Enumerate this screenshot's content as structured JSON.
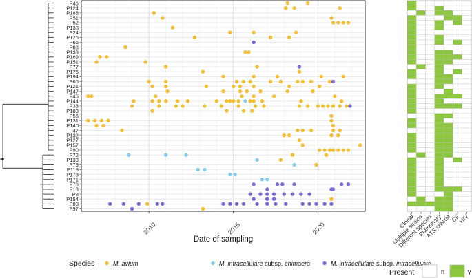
{
  "chart_data": [
    {
      "type": "scatter",
      "xlabel": "Date of sampling",
      "xlim": [
        2006.0,
        2022.8
      ],
      "x_ticks": [
        2010,
        2015,
        2020
      ],
      "x_tick_labels": [
        "2010",
        "2015",
        "2020"
      ],
      "grid": true,
      "patients": [
        "P46",
        "P124",
        "P188",
        "P51",
        "P62",
        "P130",
        "P24",
        "P125",
        "P66",
        "P88",
        "P133",
        "P169",
        "P151",
        "P77",
        "P176",
        "P194",
        "P65",
        "P121",
        "P147",
        "P45",
        "P144",
        "P33",
        "P183",
        "P56",
        "P131",
        "P140",
        "P47",
        "P132",
        "P127",
        "P157",
        "P90",
        "P72",
        "P138",
        "P79",
        "P119",
        "P173",
        "P171",
        "P76",
        "P18",
        "P8",
        "P154",
        "P80",
        "P97"
      ],
      "series": [
        {
          "name": "M. avium",
          "color": "#F2BE34",
          "points": [
            [
              "P46",
              2018.2
            ],
            [
              "P46",
              2019.4
            ],
            [
              "P124",
              2018.1
            ],
            [
              "P124",
              2018.6
            ],
            [
              "P124",
              2021.3
            ],
            [
              "P188",
              2010.3
            ],
            [
              "P51",
              2010.8
            ],
            [
              "P51",
              2020.8
            ],
            [
              "P62",
              2020.9
            ],
            [
              "P62",
              2021.2
            ],
            [
              "P62",
              2021.5
            ],
            [
              "P62",
              2021.8
            ],
            [
              "P130",
              2011.4
            ],
            [
              "P24",
              2014.8
            ],
            [
              "P24",
              2016.2
            ],
            [
              "P24",
              2018.7
            ],
            [
              "P125",
              2012.7
            ],
            [
              "P125",
              2017.2
            ],
            [
              "P125",
              2018.3
            ],
            [
              "P88",
              2008.6
            ],
            [
              "P133",
              2015.7
            ],
            [
              "P133",
              2015.9
            ],
            [
              "P169",
              2007.1
            ],
            [
              "P169",
              2007.5
            ],
            [
              "P151",
              2006.9
            ],
            [
              "P151",
              2009.8
            ],
            [
              "P77",
              2011.0
            ],
            [
              "P77",
              2016.4
            ],
            [
              "P176",
              2013.2
            ],
            [
              "P176",
              2018.9
            ],
            [
              "P194",
              2014.4
            ],
            [
              "P194",
              2016.2
            ],
            [
              "P194",
              2017.6
            ],
            [
              "P194",
              2020.2
            ],
            [
              "P194",
              2021.5
            ],
            [
              "P65",
              2010.0
            ],
            [
              "P65",
              2011.0
            ],
            [
              "P65",
              2015.2
            ],
            [
              "P65",
              2015.6
            ],
            [
              "P65",
              2016.0
            ],
            [
              "P65",
              2017.2
            ],
            [
              "P65",
              2017.8
            ],
            [
              "P65",
              2018.8
            ],
            [
              "P65",
              2019.1
            ],
            [
              "P65",
              2019.6
            ],
            [
              "P65",
              2020.7
            ],
            [
              "P121",
              2010.2
            ],
            [
              "P121",
              2011.0
            ],
            [
              "P121",
              2013.4
            ],
            [
              "P121",
              2015.0
            ],
            [
              "P121",
              2015.4
            ],
            [
              "P121",
              2016.2
            ],
            [
              "P121",
              2018.3
            ],
            [
              "P121",
              2020.1
            ],
            [
              "P147",
              2011.1
            ],
            [
              "P147",
              2014.4
            ],
            [
              "P147",
              2015.4
            ],
            [
              "P147",
              2015.8
            ],
            [
              "P147",
              2016.6
            ],
            [
              "P147",
              2018.2
            ],
            [
              "P147",
              2019.7
            ],
            [
              "P45",
              2006.4
            ],
            [
              "P45",
              2006.6
            ],
            [
              "P45",
              2010.4
            ],
            [
              "P45",
              2015.5
            ],
            [
              "P45",
              2016.2
            ],
            [
              "P45",
              2017.4
            ],
            [
              "P45",
              2021.0
            ],
            [
              "P144",
              2009.1
            ],
            [
              "P144",
              2010.2
            ],
            [
              "P144",
              2010.6
            ],
            [
              "P144",
              2011.0
            ],
            [
              "P144",
              2011.7
            ],
            [
              "P144",
              2012.3
            ],
            [
              "P144",
              2014.0
            ],
            [
              "P144",
              2014.6
            ],
            [
              "P144",
              2014.8
            ],
            [
              "P144",
              2015.0
            ],
            [
              "P144",
              2015.3
            ],
            [
              "P144",
              2016.0
            ],
            [
              "P144",
              2016.2
            ],
            [
              "P144",
              2016.7
            ],
            [
              "P144",
              2019.0
            ],
            [
              "P144",
              2021.4
            ],
            [
              "P33",
              2009.0
            ],
            [
              "P33",
              2010.6
            ],
            [
              "P33",
              2011.6
            ],
            [
              "P33",
              2012.0
            ],
            [
              "P33",
              2013.3
            ],
            [
              "P33",
              2014.3
            ],
            [
              "P33",
              2015.3
            ],
            [
              "P33",
              2016.3
            ],
            [
              "P33",
              2016.8
            ],
            [
              "P33",
              2018.9
            ],
            [
              "P33",
              2019.4
            ],
            [
              "P33",
              2020.0
            ],
            [
              "P33",
              2020.3
            ],
            [
              "P33",
              2020.6
            ],
            [
              "P33",
              2020.9
            ],
            [
              "P33",
              2021.3
            ],
            [
              "P33",
              2021.7
            ],
            [
              "P183",
              2010.2
            ],
            [
              "P183",
              2014.6
            ],
            [
              "P183",
              2015.6
            ],
            [
              "P183",
              2016.1
            ],
            [
              "P56",
              2020.8
            ],
            [
              "P131",
              2006.4
            ],
            [
              "P131",
              2006.8
            ],
            [
              "P131",
              2007.2
            ],
            [
              "P131",
              2007.6
            ],
            [
              "P131",
              2020.8
            ],
            [
              "P140",
              2006.9
            ],
            [
              "P140",
              2007.3
            ],
            [
              "P140",
              2020.9
            ],
            [
              "P47",
              2008.4
            ],
            [
              "P47",
              2018.8
            ],
            [
              "P47",
              2019.1
            ],
            [
              "P47",
              2019.6
            ],
            [
              "P47",
              2020.9
            ],
            [
              "P47",
              2021.3
            ],
            [
              "P132",
              2018.0
            ],
            [
              "P132",
              2018.3
            ],
            [
              "P132",
              2020.8
            ],
            [
              "P132",
              2021.2
            ],
            [
              "P127",
              2018.9
            ],
            [
              "P157",
              2019.1
            ],
            [
              "P157",
              2022.5
            ],
            [
              "P90",
              2020.1
            ],
            [
              "P90",
              2020.4
            ],
            [
              "P90",
              2020.7
            ],
            [
              "P90",
              2020.9
            ],
            [
              "P90",
              2021.2
            ],
            [
              "P90",
              2021.5
            ],
            [
              "P90",
              2021.8
            ],
            [
              "P72",
              2018.5
            ],
            [
              "P72",
              2020.5
            ],
            [
              "P138",
              2017.8
            ],
            [
              "P79",
              2019.9
            ],
            [
              "P154",
              2020.8
            ],
            [
              "P80",
              2009.9
            ],
            [
              "P97",
              2013.2
            ]
          ]
        },
        {
          "name": "M. intracellulare subsp. chimaera",
          "color": "#89CDED",
          "points": [
            [
              "P144",
              2015.7
            ],
            [
              "P72",
              2008.8
            ],
            [
              "P72",
              2011.0
            ],
            [
              "P72",
              2012.2
            ],
            [
              "P138",
              2016.4
            ],
            [
              "P79",
              2018.6
            ],
            [
              "P119",
              2012.9
            ],
            [
              "P119",
              2013.3
            ],
            [
              "P173",
              2014.8
            ],
            [
              "P173",
              2015.1
            ],
            [
              "P171",
              2016.7
            ],
            [
              "P171",
              2017.0
            ]
          ]
        },
        {
          "name": "M. intracellulare subsp. intracellulare",
          "color": "#7B6AD6",
          "points": [
            [
              "P66",
              2016.2
            ],
            [
              "P77",
              2018.9
            ],
            [
              "P65",
              2020.9
            ],
            [
              "P33",
              2021.9
            ],
            [
              "P76",
              2016.2
            ],
            [
              "P76",
              2017.6
            ],
            [
              "P76",
              2017.9
            ],
            [
              "P76",
              2018.6
            ],
            [
              "P76",
              2021.4
            ],
            [
              "P76",
              2021.8
            ],
            [
              "P18",
              2017.0
            ],
            [
              "P18",
              2020.8
            ],
            [
              "P18",
              2020.9
            ],
            [
              "P8",
              2016.0
            ],
            [
              "P8",
              2016.6
            ],
            [
              "P8",
              2017.0
            ],
            [
              "P8",
              2017.4
            ],
            [
              "P8",
              2018.0
            ],
            [
              "P8",
              2018.5
            ],
            [
              "P8",
              2019.0
            ],
            [
              "P8",
              2019.5
            ],
            [
              "P154",
              2016.2
            ],
            [
              "P154",
              2017.0
            ],
            [
              "P154",
              2017.4
            ],
            [
              "P80",
              2007.7
            ],
            [
              "P80",
              2008.5
            ],
            [
              "P80",
              2009.4
            ],
            [
              "P80",
              2010.5
            ],
            [
              "P80",
              2010.8
            ],
            [
              "P80",
              2014.4
            ],
            [
              "P80",
              2014.8
            ],
            [
              "P80",
              2015.2
            ],
            [
              "P80",
              2015.6
            ],
            [
              "P80",
              2016.4
            ],
            [
              "P80",
              2017.0
            ],
            [
              "P80",
              2017.5
            ],
            [
              "P80",
              2018.1
            ],
            [
              "P80",
              2019.1
            ],
            [
              "P80",
              2019.5
            ],
            [
              "P80",
              2019.9
            ],
            [
              "P80",
              2020.4
            ],
            [
              "P80",
              2020.8
            ],
            [
              "P97",
              2009.0
            ]
          ]
        }
      ]
    },
    {
      "type": "heatmap",
      "columns": [
        "Clonal",
        "Multiple strains",
        "Different species",
        "Pulmonary",
        "ATS criteria",
        "CF",
        "HIV"
      ],
      "rows": [
        "P46",
        "P124",
        "P188",
        "P51",
        "P62",
        "P130",
        "P24",
        "P125",
        "P66",
        "P88",
        "P133",
        "P169",
        "P151",
        "P77",
        "P176",
        "P194",
        "P65",
        "P121",
        "P147",
        "P45",
        "P144",
        "P33",
        "P183",
        "P56",
        "P131",
        "P140",
        "P47",
        "P132",
        "P127",
        "P157",
        "P90",
        "P72",
        "P138",
        "P79",
        "P119",
        "P173",
        "P171",
        "P76",
        "P18",
        "P8",
        "P154",
        "P80",
        "P97"
      ],
      "values": [
        "1000000",
        "1001000",
        "0101100",
        "1000110",
        "1001010",
        "1001000",
        "1000000",
        "1001000",
        "1001010",
        "1000000",
        "1001100",
        "1001110",
        "1001100",
        "0101000",
        "1001010",
        "1001100",
        "0001100",
        "1001000",
        "1000100",
        "1001110",
        "1001000",
        "1001110",
        "1000000",
        "0001100",
        "1001000",
        "1001100",
        "0001100",
        "1001100",
        "1001100",
        "1001100",
        "1001100",
        "0101100",
        "1001010",
        "1001000",
        "1001000",
        "1001000",
        "1001000",
        "1001000",
        "1001110",
        "1000100",
        "0101100",
        "1111100",
        "0001100"
      ],
      "legend_title": "Present",
      "legend_labels": [
        "n",
        "y"
      ],
      "colors": {
        "n": "#FFFFFF",
        "y": "#8DC63F"
      }
    }
  ],
  "legend": {
    "title": "Species",
    "items": [
      {
        "label": "M. avium",
        "color": "#F2BE34",
        "italic_prefix": "M. avium",
        "suffix": ""
      },
      {
        "label": "M. intracellulare subsp. chimaera",
        "color": "#89CDED",
        "italic_prefix": "M. intracellulare",
        "mid": " subsp. ",
        "italic_suffix": "chimaera"
      },
      {
        "label": "M. intracellulare subsp. intracellulare",
        "color": "#7B6AD6",
        "italic_prefix": "M. intracellulare",
        "mid": " subsp. ",
        "italic_suffix": "intracellulare"
      }
    ]
  }
}
